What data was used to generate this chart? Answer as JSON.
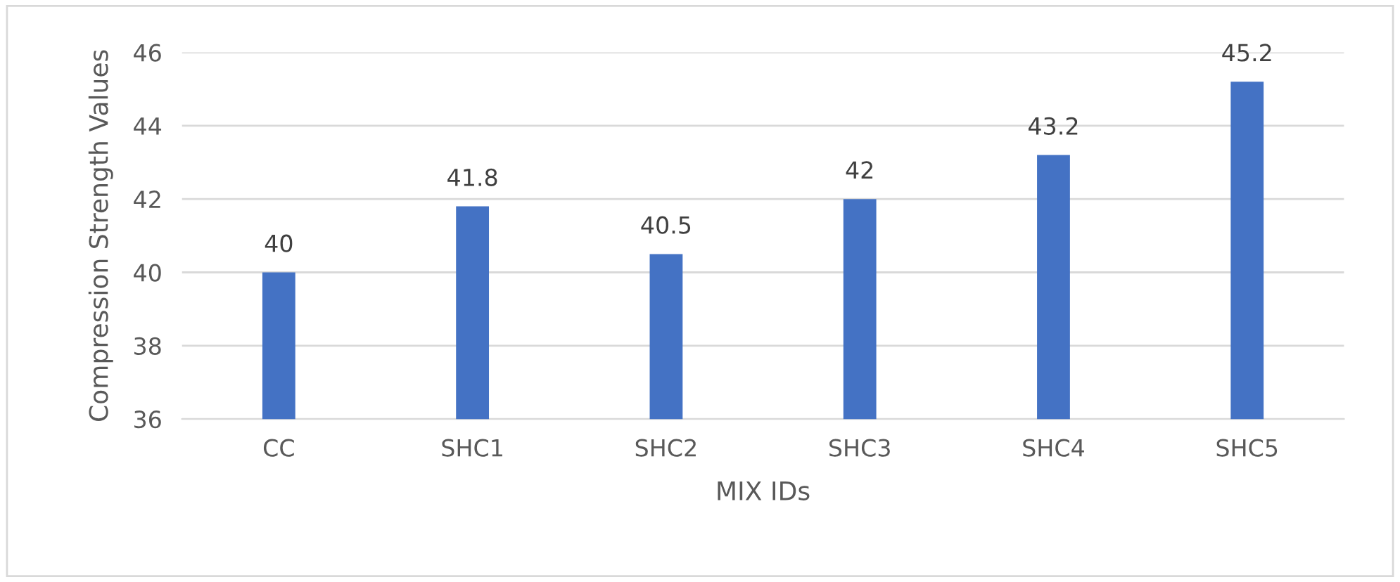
{
  "chart_data": {
    "type": "bar",
    "xlabel": "MIX IDs",
    "ylabel": "Compression Strength Values",
    "categories": [
      "CC",
      "SHC1",
      "SHC2",
      "SHC3",
      "SHC4",
      "SHC5"
    ],
    "values": [
      40,
      41.8,
      40.5,
      42,
      43.2,
      45.2
    ],
    "color": "#4472c4",
    "ylim": [
      36,
      46
    ],
    "yticks": [
      36,
      38,
      40,
      42,
      44,
      46
    ],
    "grid": "y",
    "data_labels": true
  }
}
